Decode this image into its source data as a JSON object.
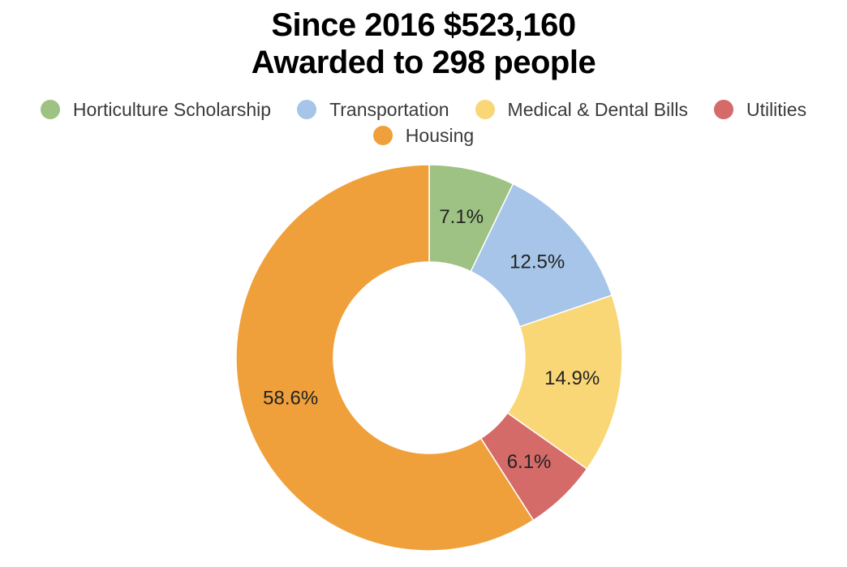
{
  "chart_data": {
    "type": "pie",
    "donut": true,
    "title_lines": [
      "Since 2016 $523,160",
      "Awarded to 298 people"
    ],
    "legend_placement": "top",
    "slices": [
      {
        "label": "Horticulture Scholarship",
        "value": 7.1,
        "display": "7.1%",
        "color": "#9dc284"
      },
      {
        "label": "Transportation",
        "value": 12.5,
        "display": "12.5%",
        "color": "#a7c5e8"
      },
      {
        "label": "Medical & Dental Bills",
        "value": 14.9,
        "display": "14.9%",
        "color": "#f9d776"
      },
      {
        "label": "Utilities",
        "value": 6.1,
        "display": "6.1%",
        "color": "#d46b68"
      },
      {
        "label": "Housing",
        "value": 58.6,
        "display": "58.6%",
        "color": "#f0a03b"
      }
    ]
  }
}
